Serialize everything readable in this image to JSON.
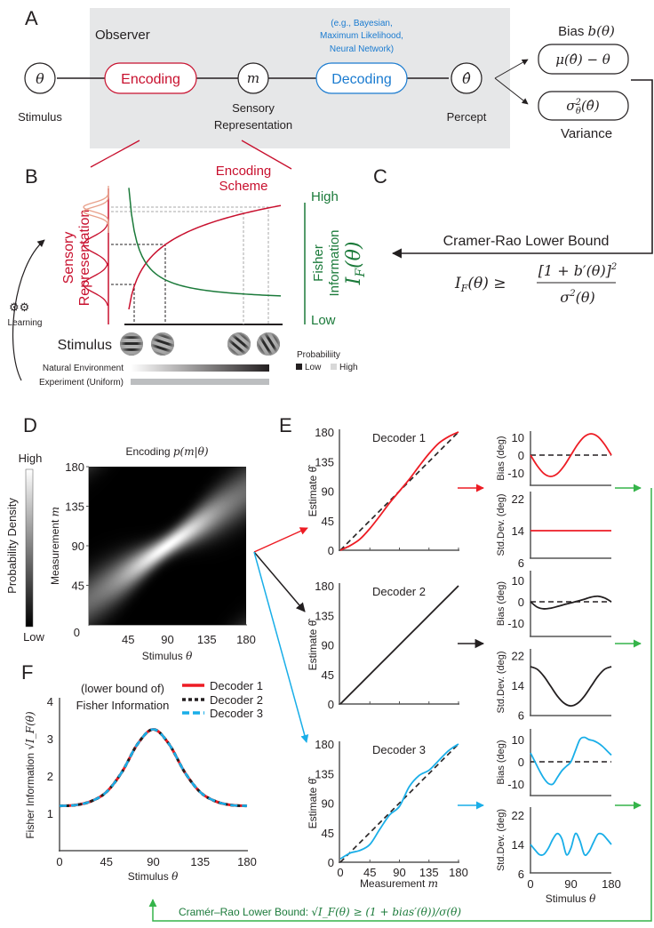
{
  "panel_labels": {
    "a": "A",
    "b": "B",
    "c": "C",
    "d": "D",
    "e": "E",
    "f": "F"
  },
  "panel_a": {
    "observer": "Observer",
    "stimulus_symbol": "θ",
    "stimulus_label": "Stimulus",
    "encoding": "Encoding",
    "m_symbol": "m",
    "sensory_label": [
      "Sensory",
      "Representation"
    ],
    "decoding": "Decoding",
    "decoder_examples": [
      "(e.g., Bayesian,",
      "Maximum Likelihood,",
      "Neural Network)"
    ],
    "percept_symbol": "θ̂",
    "percept_label": "Percept",
    "bias_label": "Bias",
    "bias_symbol": "b(θ)",
    "bias_formula": "μ(θ̂) − θ",
    "variance_formula": {
      "base": "σ",
      "sup": "2",
      "sub": "θ",
      "arg": "(θ̂)"
    },
    "variance_label": "Variance"
  },
  "panel_b": {
    "encoding_scheme": [
      "Encoding",
      "Scheme"
    ],
    "sensory_axis": [
      "Sensory",
      "Representation"
    ],
    "fisher_high": "High",
    "fisher_low": "Low",
    "fisher_axis": [
      "Fisher",
      "Information"
    ],
    "fisher_symbol": "I",
    "fisher_symbol_sub": "F",
    "fisher_symbol_arg": "(θ)",
    "stimulus": "Stimulus",
    "learning": "Learning",
    "natural": "Natural Environment",
    "experiment": "Experiment (Uniform)",
    "probability": "Probabiliity",
    "prob_low": "Low",
    "prob_high": "High"
  },
  "panel_c": {
    "title": "Cramer-Rao Lower Bound",
    "lhs": "I",
    "lhs_sub": "F",
    "lhs_arg": "(θ) ≥",
    "numerator": "[1 + b′(θ)]",
    "numerator_sup": "2",
    "denominator": "σ",
    "denominator_sup": "2",
    "denominator_arg": "(θ)"
  },
  "panel_d": {
    "title": "Encoding",
    "title_math": "p(m|θ)",
    "colorbar_high": "High",
    "colorbar_low": "Low",
    "colorbar_label": "Probability Density",
    "ylabel": "Measurement",
    "ylabel_math": "m",
    "xlabel": "Stimulus",
    "xlabel_math": "θ",
    "yticks": [
      "0",
      "45",
      "90",
      "135",
      "180"
    ],
    "xticks": [
      "45",
      "90",
      "135",
      "180"
    ]
  },
  "panel_e": {
    "decoders": [
      "Decoder 1",
      "Decoder 2",
      "Decoder 3"
    ],
    "ylabel": "Estimate",
    "ylabel_math": "θ̂",
    "yticks": [
      "0",
      "45",
      "90",
      "135",
      "180"
    ],
    "xticks": [
      "0",
      "45",
      "90",
      "135",
      "180"
    ],
    "xlabel": "Measurement",
    "xlabel_math": "m",
    "bias_label": "Bias (deg)",
    "bias_ticks": [
      "10",
      "0",
      "-10"
    ],
    "std_label": "Std.Dev. (deg)",
    "std_ticks": [
      "22",
      "14",
      "6"
    ],
    "stim_ticks": [
      "0",
      "90",
      "180"
    ],
    "stim_label": "Stimulus",
    "stim_math": "θ"
  },
  "panel_f": {
    "title": [
      "(lower bound of)",
      "Fisher Information"
    ],
    "ylabel": "Fisher Information",
    "ylabel_math": "√I_F(θ)",
    "yticks": [
      "1",
      "2",
      "3",
      "4"
    ],
    "xticks": [
      "0",
      "45",
      "90",
      "135",
      "180"
    ],
    "xlabel": "Stimulus",
    "xlabel_math": "θ",
    "legend": [
      "Decoder 1",
      "Decoder 2",
      "Decoder 3"
    ]
  },
  "footer": {
    "text": "Cramér–Rao Lower Bound:",
    "math": "√I_F(θ) ≥ (1 + bias′(θ))/σ(θ)"
  },
  "colors": {
    "red": "#ed1c24",
    "black": "#231f20",
    "blue": "#19aee8",
    "green": "#35b44a",
    "dark_green": "#1b7a3a",
    "encoding_red": "#c8102e",
    "decoding_blue": "#1a7bd0"
  },
  "chart_data": [
    {
      "type": "heatmap",
      "title": "Encoding p(m|θ)",
      "xlabel": "Stimulus θ",
      "ylabel": "Measurement m",
      "xlim": [
        0,
        180
      ],
      "ylim": [
        0,
        180
      ],
      "peak": [
        90,
        90
      ]
    },
    {
      "type": "line",
      "title": "Decoder 1",
      "xlabel": "Measurement m",
      "ylabel": "Estimate θ̂",
      "xlim": [
        0,
        180
      ],
      "ylim": [
        0,
        180
      ],
      "x": [
        0,
        15,
        30,
        45,
        60,
        75,
        90,
        105,
        120,
        135,
        150,
        165,
        180
      ],
      "estimate": [
        0,
        7,
        17,
        33,
        52,
        72,
        90,
        108,
        128,
        147,
        163,
        173,
        180
      ],
      "bias": [
        0,
        -6,
        -10.4,
        -12,
        -10.4,
        -6,
        0,
        6,
        10.4,
        12,
        10.4,
        6,
        0
      ],
      "std": [
        14,
        14,
        14,
        14,
        14,
        14,
        14,
        14,
        14,
        14,
        14,
        14,
        14
      ]
    },
    {
      "type": "line",
      "title": "Decoder 2",
      "xlabel": "Measurement m",
      "ylabel": "Estimate θ̂",
      "xlim": [
        0,
        180
      ],
      "ylim": [
        0,
        180
      ],
      "x": [
        0,
        15,
        30,
        45,
        60,
        75,
        90,
        105,
        120,
        135,
        150,
        165,
        180
      ],
      "estimate": [
        0,
        15,
        30,
        45,
        60,
        75,
        90,
        105,
        120,
        135,
        150,
        165,
        180
      ],
      "bias": [
        0,
        -2.5,
        -3.3,
        -3,
        -2.2,
        -1.3,
        -0.5,
        0.3,
        1.2,
        2.2,
        2.6,
        1.8,
        0
      ],
      "std": [
        19,
        18.3,
        16.4,
        13.75,
        11.1,
        9.2,
        8.5,
        9.2,
        11.1,
        13.75,
        16.4,
        18.3,
        19
      ]
    },
    {
      "type": "line",
      "title": "Decoder 3",
      "xlabel": "Measurement m",
      "ylabel": "Estimate θ̂",
      "xlim": [
        0,
        180
      ],
      "ylim": [
        0,
        180
      ],
      "x": [
        0,
        15,
        30,
        45,
        60,
        75,
        90,
        105,
        120,
        135,
        150,
        165,
        180
      ],
      "estimate": [
        5,
        14,
        18,
        27,
        50,
        72,
        85,
        115,
        132,
        140,
        155,
        170,
        180
      ],
      "x_fine": [
        0,
        10,
        20,
        30,
        40,
        50,
        60,
        70,
        80,
        90,
        100,
        110,
        120,
        130,
        140,
        150,
        160,
        170,
        180
      ],
      "bias": [
        4,
        0,
        -4,
        -7.5,
        -9.8,
        -10,
        -7,
        -4,
        -2,
        0,
        5,
        10,
        11,
        10,
        9.5,
        8.5,
        7,
        5,
        3
      ],
      "std": [
        14,
        12.5,
        11.2,
        11.3,
        13,
        15.5,
        17,
        15.5,
        11.2,
        13,
        17,
        15,
        11.2,
        12,
        14.5,
        16.8,
        16.8,
        15.5,
        14
      ]
    },
    {
      "type": "line",
      "title": "(lower bound of) Fisher Information",
      "xlabel": "Stimulus θ",
      "ylabel": "Fisher Information √I_F(θ)",
      "xlim": [
        0,
        180
      ],
      "ylim": [
        0,
        4
      ],
      "x": [
        0,
        15,
        30,
        45,
        60,
        75,
        90,
        105,
        120,
        135,
        150,
        165,
        180
      ],
      "series": [
        {
          "name": "Decoder 1",
          "values": [
            1.2,
            1.22,
            1.32,
            1.57,
            2.11,
            2.86,
            3.25,
            2.86,
            2.11,
            1.57,
            1.32,
            1.22,
            1.2
          ]
        },
        {
          "name": "Decoder 2",
          "values": [
            1.2,
            1.22,
            1.32,
            1.57,
            2.11,
            2.86,
            3.25,
            2.86,
            2.11,
            1.57,
            1.32,
            1.22,
            1.2
          ]
        },
        {
          "name": "Decoder 3",
          "values": [
            1.2,
            1.22,
            1.32,
            1.57,
            2.11,
            2.86,
            3.25,
            2.86,
            2.11,
            1.57,
            1.32,
            1.22,
            1.2
          ]
        }
      ]
    }
  ]
}
